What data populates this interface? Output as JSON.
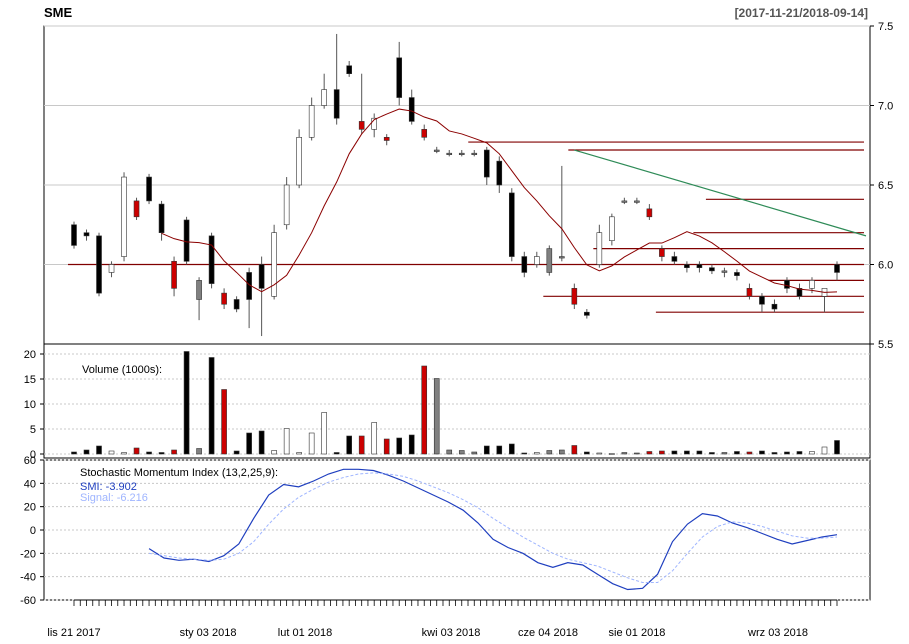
{
  "header": {
    "symbol": "SME",
    "range": "[2017-11-21/2018-09-14]"
  },
  "colors": {
    "up": "#ffffff",
    "down": "#000000",
    "gap_down": "#cc0000",
    "neutral": "#808080",
    "ma_line": "#8b0000",
    "sr_line": "#800000",
    "trend_line": "#2e8b57",
    "smi_line": "#1f3fbf",
    "signal_line": "#9fb5ff"
  },
  "price_axis": {
    "min": 5.5,
    "max": 7.5,
    "ticks": [
      "5.5",
      "6.0",
      "6.5",
      "7.0",
      "7.5"
    ]
  },
  "volume_axis": {
    "min": 0,
    "max": 20,
    "ticks": [
      "0",
      "5",
      "10",
      "15",
      "20"
    ]
  },
  "smi_axis": {
    "min": -60,
    "max": 60,
    "ticks": [
      "-60",
      "-40",
      "-20",
      "0",
      "20",
      "40",
      "60"
    ]
  },
  "x_labels": [
    "lis 21 2017",
    "sty 03 2018",
    "lut 01 2018",
    "kwi 03 2018",
    "cze 04 2018",
    "sie 01 2018",
    "wrz 03 2018"
  ],
  "legend": {
    "volume": "Volume (1000s):",
    "smi_title": "Stochastic Momentum Index (13,2,25,9):",
    "smi_value": "SMI: -3.902",
    "signal_value": "Signal: -6.216"
  },
  "chart_data": [
    {
      "type": "candlestick",
      "categories": [
        "2017-11-21",
        "2017-11-24",
        "2017-11-29",
        "2017-12-04",
        "2017-12-07",
        "2017-12-12",
        "2017-12-15",
        "2017-12-20",
        "2017-12-27",
        "2018-01-03",
        "2018-01-08",
        "2018-01-11",
        "2018-01-16",
        "2018-01-19",
        "2018-01-24",
        "2018-01-29",
        "2018-02-01",
        "2018-02-06",
        "2018-02-09",
        "2018-02-14",
        "2018-02-19",
        "2018-02-22",
        "2018-02-27",
        "2018-03-02",
        "2018-03-07",
        "2018-03-12",
        "2018-03-15",
        "2018-03-20",
        "2018-03-23",
        "2018-03-28",
        "2018-04-03",
        "2018-04-09",
        "2018-04-12",
        "2018-04-17",
        "2018-04-20",
        "2018-04-25",
        "2018-05-02",
        "2018-05-07",
        "2018-05-11",
        "2018-05-16",
        "2018-05-21",
        "2018-05-25",
        "2018-06-04",
        "2018-06-08",
        "2018-06-13",
        "2018-06-18",
        "2018-06-21",
        "2018-06-26",
        "2018-07-02",
        "2018-07-06",
        "2018-07-12",
        "2018-07-18",
        "2018-07-24",
        "2018-08-01",
        "2018-08-07",
        "2018-08-13",
        "2018-08-17",
        "2018-08-23",
        "2018-08-29",
        "2018-09-03",
        "2018-09-07",
        "2018-09-14"
      ],
      "series": [
        {
          "open": [
            6.25,
            6.2,
            6.18,
            5.95,
            6.05,
            6.4,
            6.55,
            6.38,
            6.02,
            6.28,
            5.9,
            6.18,
            5.82,
            5.78,
            5.95,
            6.0,
            5.8,
            6.25,
            6.5,
            6.8,
            7.0,
            7.1,
            7.25,
            6.9,
            6.85,
            6.8,
            7.3,
            7.05,
            6.85,
            6.72,
            6.7,
            6.7,
            6.7,
            6.72,
            6.65,
            6.45,
            6.05,
            6.0,
            6.1,
            6.05,
            5.85,
            5.7,
            6.0,
            6.15,
            6.4,
            6.4,
            6.35,
            6.1,
            6.05,
            6.0,
            6.0,
            5.98,
            5.96,
            5.95,
            5.85,
            5.8,
            5.75,
            5.9,
            5.85,
            5.85,
            5.8,
            6.0
          ]
        },
        {
          "close": [
            6.12,
            6.18,
            5.82,
            6.0,
            6.55,
            6.3,
            6.4,
            6.2,
            5.85,
            6.02,
            5.78,
            5.88,
            5.75,
            5.72,
            5.78,
            5.85,
            6.2,
            6.5,
            6.8,
            7.0,
            7.1,
            6.92,
            7.2,
            6.85,
            6.92,
            6.78,
            7.05,
            6.9,
            6.8,
            6.72,
            6.7,
            6.7,
            6.7,
            6.55,
            6.5,
            6.05,
            5.95,
            6.05,
            5.95,
            6.05,
            5.75,
            5.68,
            6.2,
            6.3,
            6.4,
            6.4,
            6.3,
            6.05,
            6.02,
            5.98,
            5.98,
            5.96,
            5.95,
            5.93,
            5.8,
            5.75,
            5.72,
            5.85,
            5.8,
            5.9,
            5.85,
            5.95
          ]
        },
        {
          "high": [
            6.27,
            6.22,
            6.2,
            6.02,
            6.58,
            6.42,
            6.57,
            6.4,
            6.05,
            6.3,
            5.92,
            6.2,
            5.85,
            5.8,
            5.98,
            6.05,
            6.25,
            6.55,
            6.85,
            7.05,
            7.2,
            7.45,
            7.28,
            7.2,
            6.95,
            6.82,
            7.4,
            7.1,
            6.88,
            6.74,
            6.72,
            6.72,
            6.72,
            6.74,
            6.68,
            6.48,
            6.08,
            6.08,
            6.12,
            6.62,
            5.88,
            5.72,
            6.25,
            6.32,
            6.42,
            6.42,
            6.38,
            6.12,
            6.08,
            6.02,
            6.02,
            6.0,
            5.98,
            5.97,
            5.88,
            5.82,
            5.78,
            5.92,
            5.88,
            5.92,
            5.82,
            6.02
          ]
        },
        {
          "low": [
            6.1,
            6.15,
            5.8,
            5.92,
            6.02,
            6.28,
            6.38,
            6.15,
            5.8,
            6.0,
            5.65,
            5.85,
            5.72,
            5.7,
            5.6,
            5.55,
            5.78,
            6.22,
            6.48,
            6.78,
            6.98,
            6.88,
            7.18,
            6.82,
            6.8,
            6.75,
            7.0,
            6.88,
            6.78,
            6.7,
            6.68,
            6.68,
            6.68,
            6.5,
            6.45,
            6.02,
            5.92,
            5.98,
            5.93,
            6.02,
            5.72,
            5.66,
            5.98,
            6.12,
            6.38,
            6.38,
            6.28,
            6.02,
            6.0,
            5.95,
            5.95,
            5.94,
            5.92,
            5.9,
            5.78,
            5.7,
            5.7,
            5.82,
            5.78,
            5.82,
            5.7,
            5.9
          ]
        },
        {
          "volume": [
            0.4,
            0.8,
            1.6,
            0.6,
            0.3,
            1.2,
            0.4,
            0.3,
            0.8,
            20.5,
            1.1,
            19.3,
            12.9,
            0.6,
            4.2,
            4.6,
            0.7,
            5.1,
            0.3,
            4.2,
            8.3,
            0.3,
            3.6,
            3.6,
            6.3,
            3.0,
            3.2,
            3.8,
            17.6,
            15.1,
            0.8,
            0.7,
            0.4,
            1.6,
            1.6,
            2.0,
            0.2,
            0.3,
            0.7,
            0.8,
            1.7,
            0.4,
            0.2,
            0.1,
            0.3,
            0.2,
            0.5,
            0.6,
            0.6,
            0.6,
            0.6,
            0.3,
            0.3,
            0.5,
            0.4,
            0.6,
            0.3,
            0.4,
            0.5,
            0.5,
            1.4,
            2.7
          ]
        }
      ]
    },
    {
      "type": "line",
      "x_start": "2017-12-15",
      "series": [
        {
          "name": "SMI",
          "values": [
            -16,
            -24,
            -26,
            -25,
            -27,
            -22,
            -12,
            10,
            30,
            39,
            37,
            42,
            48,
            52,
            52,
            51,
            47,
            42,
            36,
            30,
            24,
            17,
            6,
            -8,
            -15,
            -20,
            -28,
            -32,
            -28,
            -30,
            -38,
            -46,
            -51,
            -50,
            -38,
            -10,
            5,
            14,
            12,
            6,
            2,
            -3,
            -8,
            -12,
            -9,
            -6,
            -4
          ]
        },
        {
          "name": "Signal",
          "values": [
            -20,
            -22,
            -24,
            -25,
            -26,
            -25,
            -20,
            -10,
            5,
            18,
            28,
            35,
            41,
            45,
            48,
            49,
            48,
            46,
            42,
            37,
            32,
            26,
            19,
            10,
            2,
            -6,
            -13,
            -20,
            -25,
            -28,
            -31,
            -36,
            -41,
            -45,
            -45,
            -35,
            -20,
            -6,
            3,
            7,
            6,
            3,
            -1,
            -5,
            -7,
            -7,
            -6
          ]
        }
      ]
    }
  ]
}
